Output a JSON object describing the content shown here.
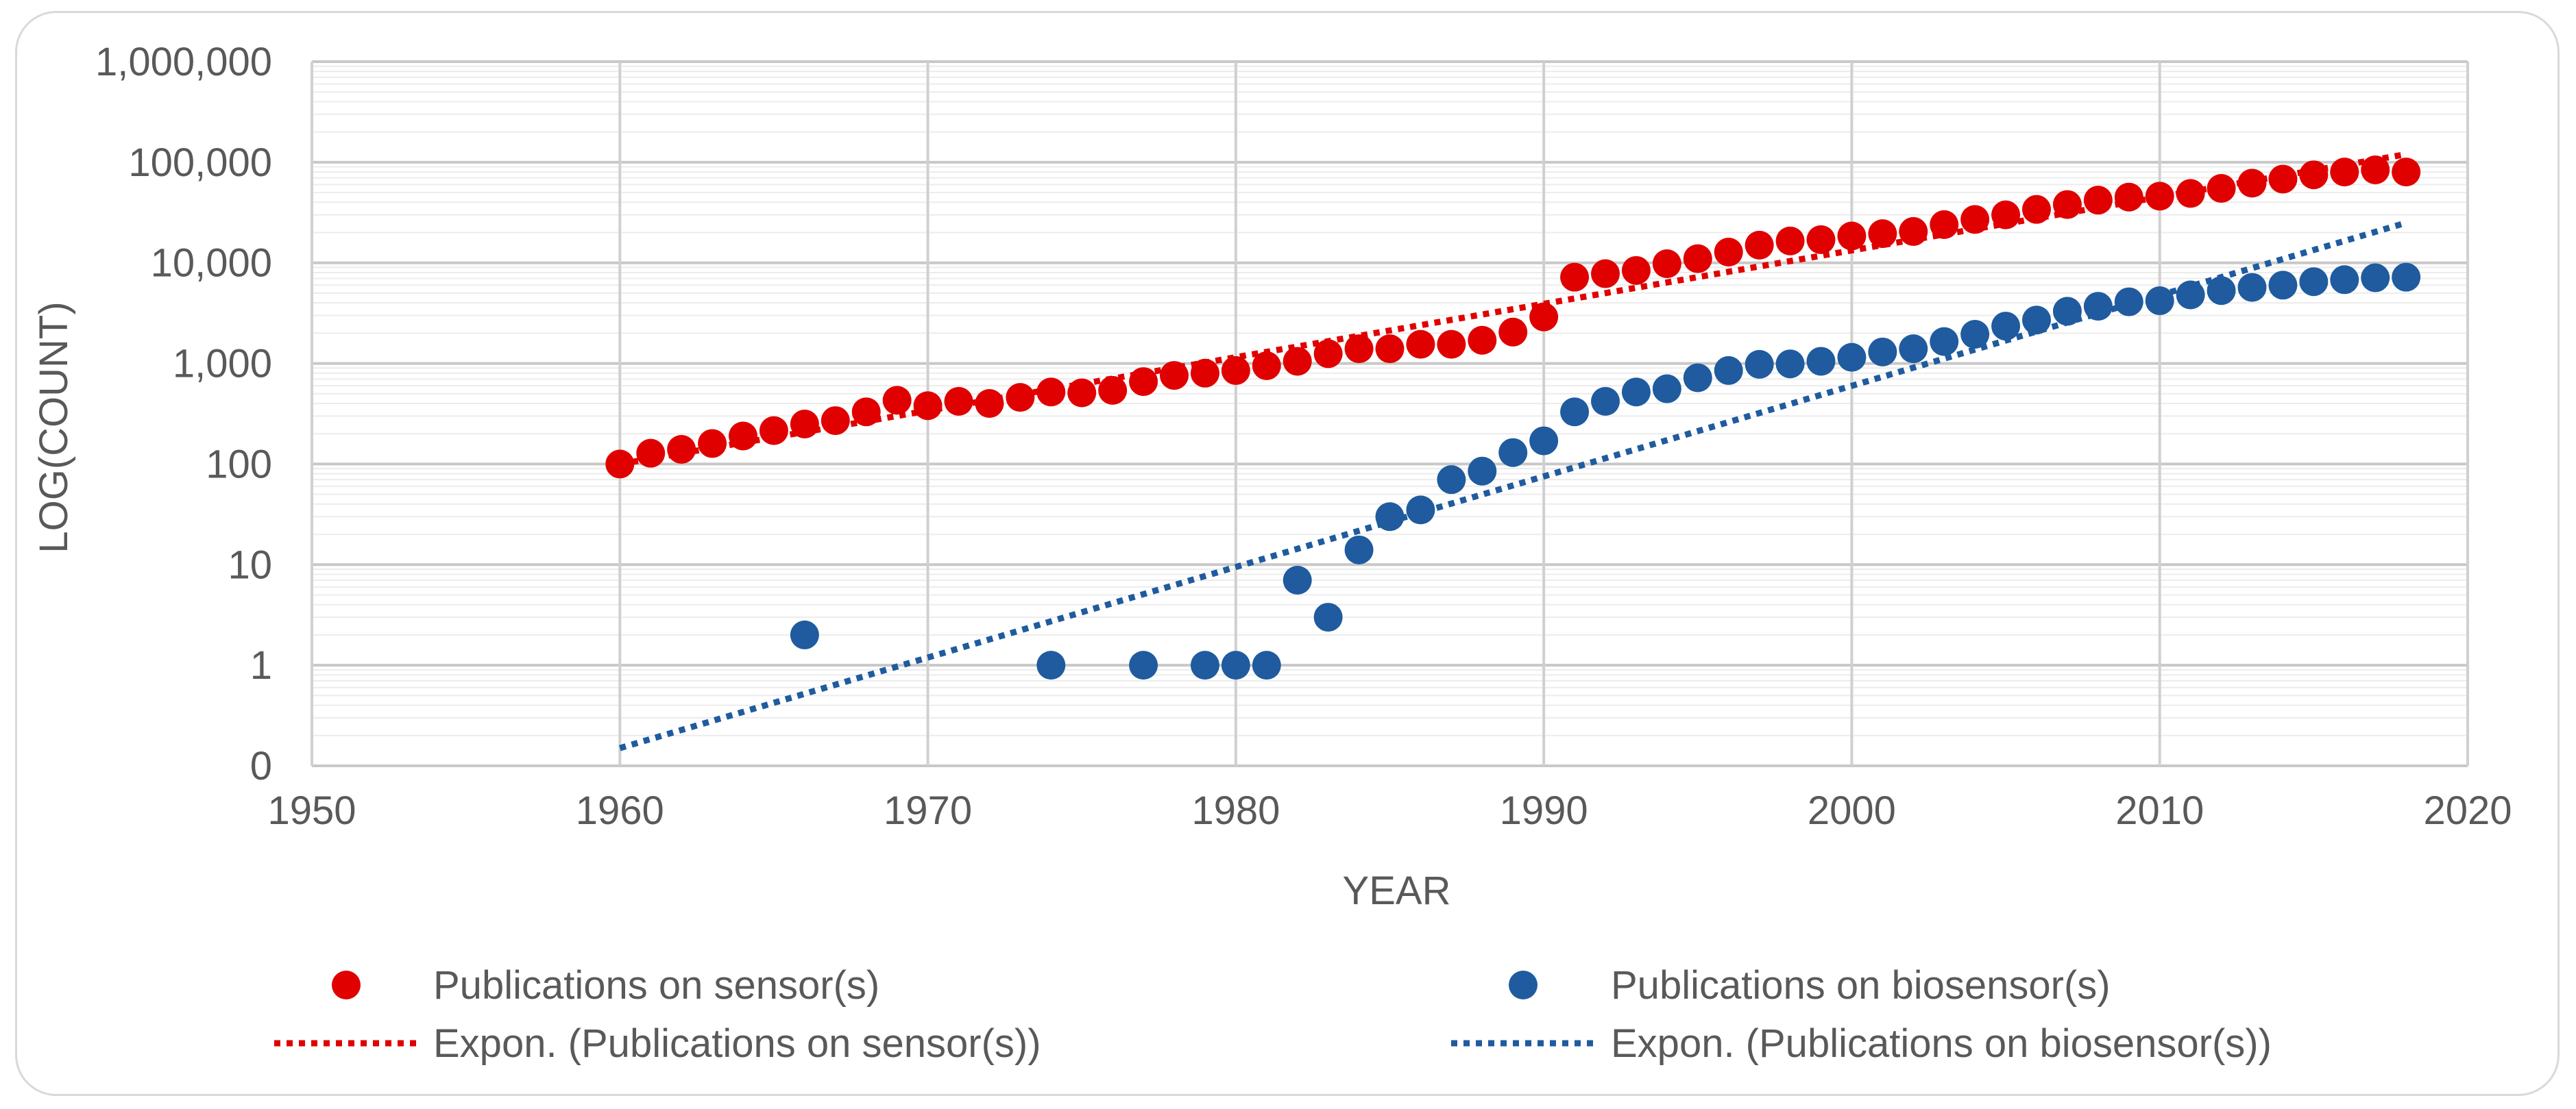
{
  "chart_data": {
    "type": "scatter",
    "title": "",
    "xlabel": "YEAR",
    "ylabel": "LOG(COUNT)",
    "xlim": [
      1950,
      2020
    ],
    "xticks": [
      "1950",
      "1960",
      "1970",
      "1980",
      "1990",
      "2000",
      "2010",
      "2020"
    ],
    "y_scale": "log",
    "ylim_decades": [
      -1,
      6
    ],
    "yticks": [
      "0",
      "1",
      "10",
      "100",
      "1,000",
      "10,000",
      "100,000",
      "1,000,000"
    ],
    "grid": true,
    "legend_position": "bottom",
    "series": [
      {
        "name": "Publications on sensor(s)",
        "color": "#e00000",
        "points": [
          [
            1960,
            100
          ],
          [
            1961,
            128
          ],
          [
            1962,
            140
          ],
          [
            1963,
            160
          ],
          [
            1964,
            190
          ],
          [
            1965,
            215
          ],
          [
            1966,
            250
          ],
          [
            1967,
            270
          ],
          [
            1968,
            330
          ],
          [
            1969,
            430
          ],
          [
            1970,
            380
          ],
          [
            1971,
            420
          ],
          [
            1972,
            400
          ],
          [
            1973,
            460
          ],
          [
            1974,
            520
          ],
          [
            1975,
            510
          ],
          [
            1976,
            540
          ],
          [
            1977,
            660
          ],
          [
            1978,
            760
          ],
          [
            1979,
            800
          ],
          [
            1980,
            850
          ],
          [
            1981,
            950
          ],
          [
            1982,
            1050
          ],
          [
            1983,
            1250
          ],
          [
            1984,
            1400
          ],
          [
            1985,
            1400
          ],
          [
            1986,
            1550
          ],
          [
            1987,
            1550
          ],
          [
            1988,
            1700
          ],
          [
            1989,
            2050
          ],
          [
            1990,
            2900
          ],
          [
            1991,
            7200
          ],
          [
            1992,
            7800
          ],
          [
            1993,
            8400
          ],
          [
            1994,
            9800
          ],
          [
            1995,
            11000
          ],
          [
            1996,
            12800
          ],
          [
            1997,
            15000
          ],
          [
            1998,
            16500
          ],
          [
            1999,
            17000
          ],
          [
            2000,
            18500
          ],
          [
            2001,
            19500
          ],
          [
            2002,
            20500
          ],
          [
            2003,
            24000
          ],
          [
            2004,
            27000
          ],
          [
            2005,
            30000
          ],
          [
            2006,
            34000
          ],
          [
            2007,
            38000
          ],
          [
            2008,
            42000
          ],
          [
            2009,
            45000
          ],
          [
            2010,
            46000
          ],
          [
            2011,
            49000
          ],
          [
            2012,
            55000
          ],
          [
            2013,
            62000
          ],
          [
            2014,
            68000
          ],
          [
            2015,
            75000
          ],
          [
            2016,
            80000
          ],
          [
            2017,
            84000
          ],
          [
            2018,
            80000
          ]
        ]
      },
      {
        "name": "Publications on biosensor(s)",
        "color": "#1f5b9e",
        "points": [
          [
            1966,
            2
          ],
          [
            1974,
            1
          ],
          [
            1977,
            1
          ],
          [
            1979,
            1
          ],
          [
            1980,
            1
          ],
          [
            1981,
            1
          ],
          [
            1982,
            7
          ],
          [
            1983,
            3
          ],
          [
            1984,
            14
          ],
          [
            1985,
            30
          ],
          [
            1986,
            35
          ],
          [
            1987,
            70
          ],
          [
            1988,
            85
          ],
          [
            1989,
            130
          ],
          [
            1990,
            170
          ],
          [
            1991,
            330
          ],
          [
            1992,
            420
          ],
          [
            1993,
            520
          ],
          [
            1994,
            560
          ],
          [
            1995,
            720
          ],
          [
            1996,
            850
          ],
          [
            1997,
            980
          ],
          [
            1998,
            990
          ],
          [
            1999,
            1050
          ],
          [
            2000,
            1150
          ],
          [
            2001,
            1300
          ],
          [
            2002,
            1400
          ],
          [
            2003,
            1650
          ],
          [
            2004,
            1950
          ],
          [
            2005,
            2350
          ],
          [
            2006,
            2700
          ],
          [
            2007,
            3300
          ],
          [
            2008,
            3700
          ],
          [
            2009,
            4100
          ],
          [
            2010,
            4200
          ],
          [
            2011,
            4800
          ],
          [
            2012,
            5300
          ],
          [
            2013,
            5700
          ],
          [
            2014,
            6000
          ],
          [
            2015,
            6500
          ],
          [
            2016,
            6800
          ],
          [
            2017,
            7100
          ],
          [
            2018,
            7200
          ]
        ]
      }
    ],
    "trendlines": [
      {
        "name": "Expon. (Publications on sensor(s))",
        "color": "#e00000",
        "x": [
          1960,
          2018
        ],
        "y": [
          100,
          120000
        ]
      },
      {
        "name": "Expon. (Publications on biosensor(s))",
        "color": "#1f5b9e",
        "x": [
          1960,
          2018
        ],
        "y": [
          0.15,
          25000
        ]
      }
    ]
  }
}
